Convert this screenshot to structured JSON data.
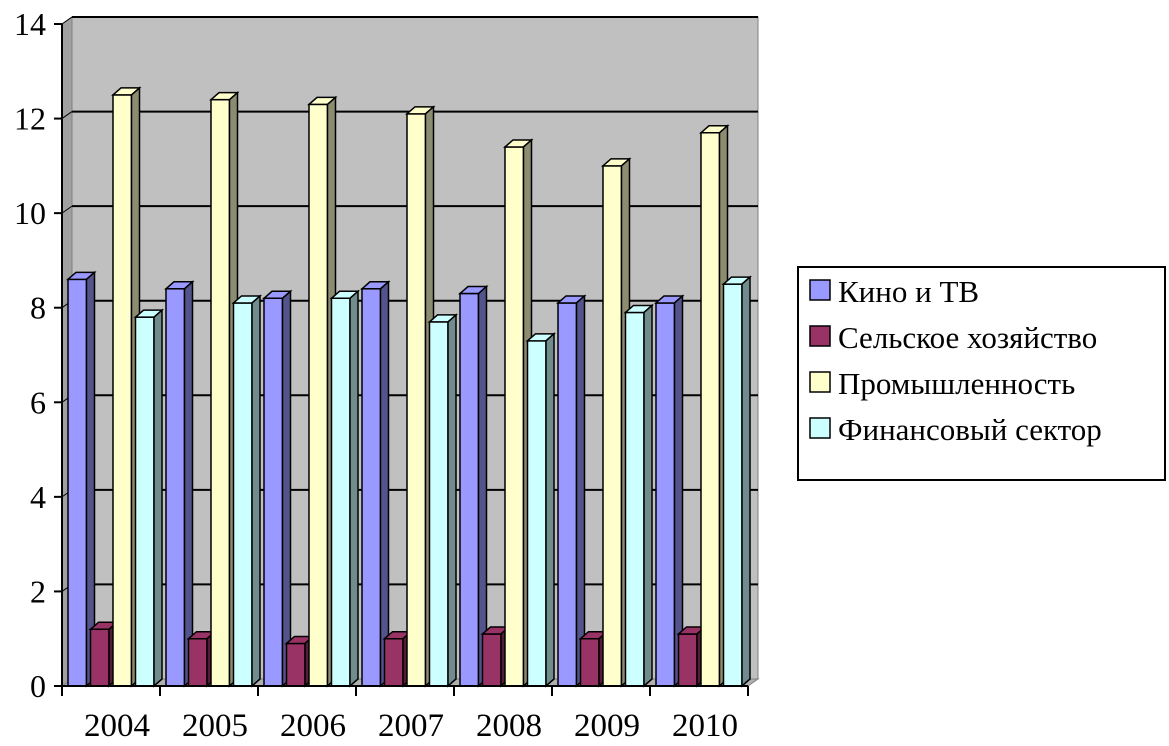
{
  "chart_data": {
    "type": "bar",
    "style": "3d-clustered-column",
    "categories": [
      "2004",
      "2005",
      "2006",
      "2007",
      "2008",
      "2009",
      "2010"
    ],
    "series": [
      {
        "name": "Кино и ТВ",
        "color": "#9999FF",
        "values": [
          8.6,
          8.4,
          8.2,
          8.4,
          8.3,
          8.1,
          8.1
        ]
      },
      {
        "name": "Сельское хозяйство",
        "color": "#993366",
        "values": [
          1.2,
          1.0,
          0.9,
          1.0,
          1.1,
          1.0,
          1.1
        ]
      },
      {
        "name": "Промышленность",
        "color": "#FFFFCC",
        "values": [
          12.5,
          12.4,
          12.3,
          12.1,
          11.4,
          11.0,
          11.7
        ]
      },
      {
        "name": "Финансовый сектор",
        "color": "#CCFFFF",
        "values": [
          7.8,
          8.1,
          8.2,
          7.7,
          7.3,
          7.9,
          8.5
        ]
      }
    ],
    "ylim": [
      0,
      14
    ],
    "yticks": [
      "0",
      "2",
      "4",
      "6",
      "8",
      "10",
      "12",
      "14"
    ],
    "grid": true,
    "legend_position": "right",
    "plot_background": "#C0C0C0",
    "gridline_color": "#000000",
    "title": "",
    "xlabel": "",
    "ylabel": ""
  }
}
